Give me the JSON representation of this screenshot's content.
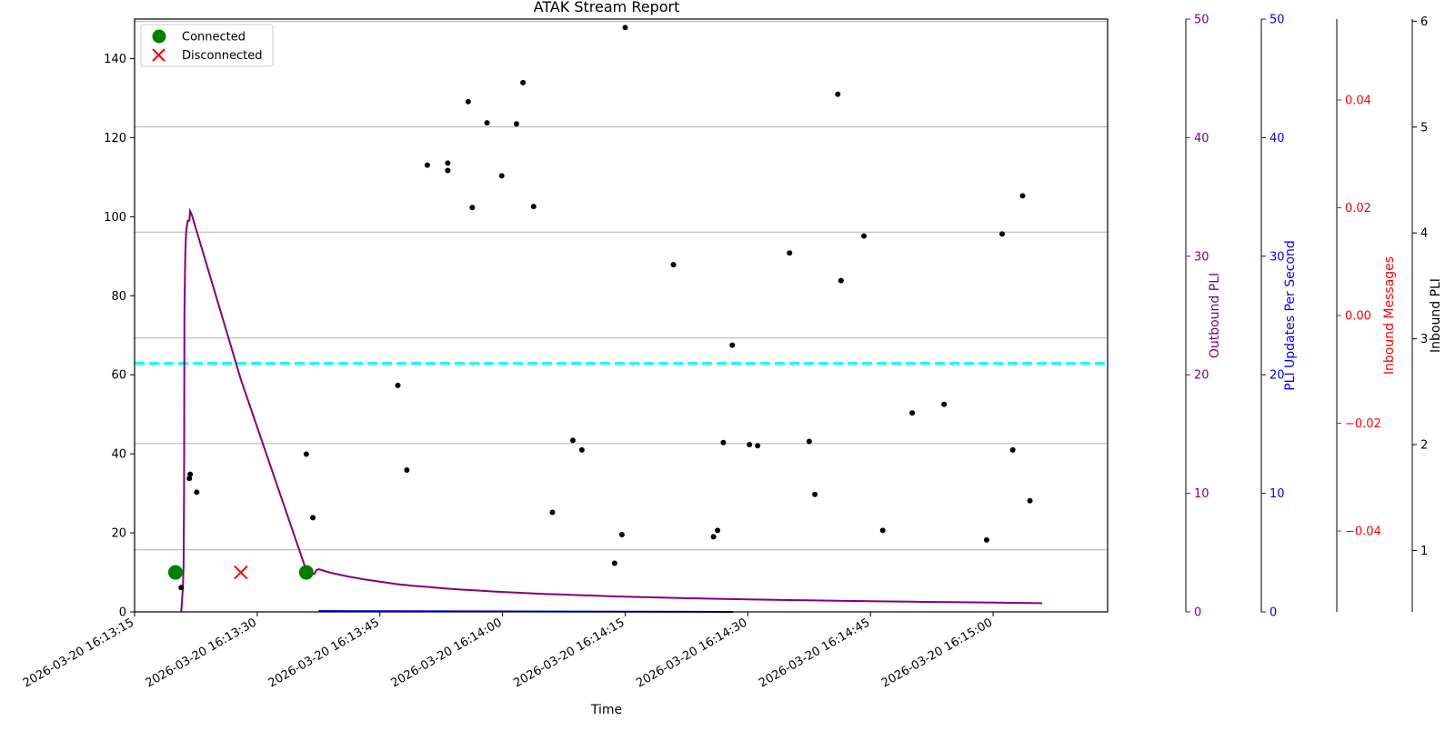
{
  "chart_data": {
    "type": "line",
    "title": "ATAK Stream Report",
    "xlabel": "Time",
    "x_ticks": [
      "2026-03-20 16:13:15",
      "2026-03-20 16:13:30",
      "2026-03-20 16:13:45",
      "2026-03-20 16:14:00",
      "2026-03-20 16:14:15",
      "2026-03-20 16:14:30",
      "2026-03-20 16:14:45",
      "2026-03-20 16:15:00"
    ],
    "x_range_seconds_after_161315": [
      0,
      119
    ],
    "y_left": {
      "label": "",
      "range": [
        0,
        150
      ],
      "ticks": [
        0,
        20,
        40,
        60,
        80,
        100,
        120,
        140
      ]
    },
    "y_right_axes": [
      {
        "label": "Outbound PLI",
        "color": "#800080",
        "range": [
          0,
          50
        ],
        "ticks": [
          0,
          10,
          20,
          30,
          40,
          50
        ]
      },
      {
        "label": "PLI Updates Per Second",
        "color": "#0000ff",
        "range": [
          0,
          50
        ],
        "ticks": [
          0,
          10,
          20,
          30,
          40,
          50
        ]
      },
      {
        "label": "Inbound Messages",
        "color": "#ff0000",
        "range": [
          -0.055,
          0.055
        ],
        "ticks": [
          "−0.04",
          "−0.02",
          "0.00",
          "0.02",
          "0.04"
        ]
      },
      {
        "label": "Inbound PLI",
        "color": "#000000",
        "range": [
          0.42,
          6.02
        ],
        "ticks": [
          "1",
          "2",
          "3",
          "4",
          "5",
          "6"
        ]
      }
    ],
    "grid_y_values_left": [
      15.7,
      42.6,
      69.3,
      96.1,
      122.7,
      149.4
    ],
    "hline": {
      "value": 62.9,
      "color": "#00ffff",
      "style": "dashed"
    },
    "legend": {
      "position": "upper-left",
      "entries": [
        {
          "label": "Connected",
          "color": "#008000",
          "marker": "circle"
        },
        {
          "label": "Disconnected",
          "color": "#ff0000",
          "marker": "x"
        }
      ]
    },
    "connected_points": [
      {
        "x": "2026-03-20 16:13:20",
        "y": 10
      },
      {
        "x": "2026-03-20 16:13:36",
        "y": 10
      }
    ],
    "disconnected_points": [
      {
        "x": "2026-03-20 16:13:28",
        "y": 10
      }
    ],
    "series": [
      {
        "name": "Outbound PLI",
        "axis": "Outbound PLI",
        "color": "#800080",
        "x_seconds": [
          5.7,
          5.9,
          6.0,
          6.05,
          6.1,
          6.2,
          6.3,
          6.5,
          6.7,
          6.8,
          7.0,
          13.0,
          20.9,
          21.3,
          22.0,
          22.2,
          22.5,
          24,
          26,
          28,
          30,
          32,
          34,
          36,
          38,
          40,
          42,
          44,
          46,
          48,
          50,
          52,
          54,
          56,
          58,
          60,
          65,
          70,
          75,
          80,
          85,
          90,
          95,
          100,
          105,
          111
        ],
        "values": [
          0,
          2,
          4,
          10,
          25,
          30,
          32,
          33,
          33,
          33.8,
          33.5,
          19.6,
          3.7,
          3.3,
          3.2,
          3.5,
          3.6,
          3.3,
          3.0,
          2.75,
          2.55,
          2.35,
          2.2,
          2.1,
          1.98,
          1.88,
          1.8,
          1.72,
          1.65,
          1.58,
          1.52,
          1.47,
          1.42,
          1.38,
          1.33,
          1.29,
          1.2,
          1.12,
          1.06,
          1.0,
          0.95,
          0.9,
          0.86,
          0.82,
          0.78,
          0.74
        ]
      },
      {
        "name": "PLI Updates Per Second",
        "axis": "PLI Updates Per Second",
        "color": "#0000ff",
        "x_seconds": [
          22.5,
          73.2
        ],
        "values": [
          0.08,
          0.0
        ]
      },
      {
        "name": "Inbound PLI",
        "axis": "Inbound PLI",
        "color": "#000000",
        "style": "points",
        "x_seconds": [
          5.7,
          6.7,
          6.8,
          7.6,
          21.0,
          21.8,
          32.2,
          33.3,
          35.8,
          38.3,
          38.3,
          40.8,
          41.3,
          43.1,
          44.9,
          46.7,
          47.5,
          48.8,
          51.1,
          53.6,
          54.7,
          58.7,
          59.6,
          60.0,
          65.9,
          70.8,
          71.3,
          72.0,
          73.1,
          75.2,
          76.2,
          80.1,
          82.5,
          83.2,
          86.0,
          86.4,
          89.2,
          91.5,
          95.1,
          99.0,
          104.2,
          106.1,
          107.4,
          108.6,
          109.5
        ],
        "values": [
          0.65,
          1.68,
          1.72,
          1.55,
          1.91,
          1.31,
          2.56,
          1.76,
          4.64,
          4.59,
          4.66,
          5.24,
          4.24,
          5.04,
          4.54,
          5.03,
          5.42,
          4.25,
          1.36,
          2.04,
          1.95,
          0.88,
          1.15,
          5.94,
          3.7,
          1.13,
          1.19,
          2.02,
          2.94,
          2.0,
          1.99,
          3.81,
          2.03,
          1.53,
          5.31,
          3.55,
          3.97,
          1.19,
          2.3,
          2.38,
          1.1,
          3.99,
          1.95,
          4.35,
          1.47
        ]
      },
      {
        "name": "Inbound Messages",
        "axis": "Inbound Messages",
        "color": "#ff0000",
        "style": "points",
        "x_seconds": [],
        "values": []
      }
    ]
  }
}
